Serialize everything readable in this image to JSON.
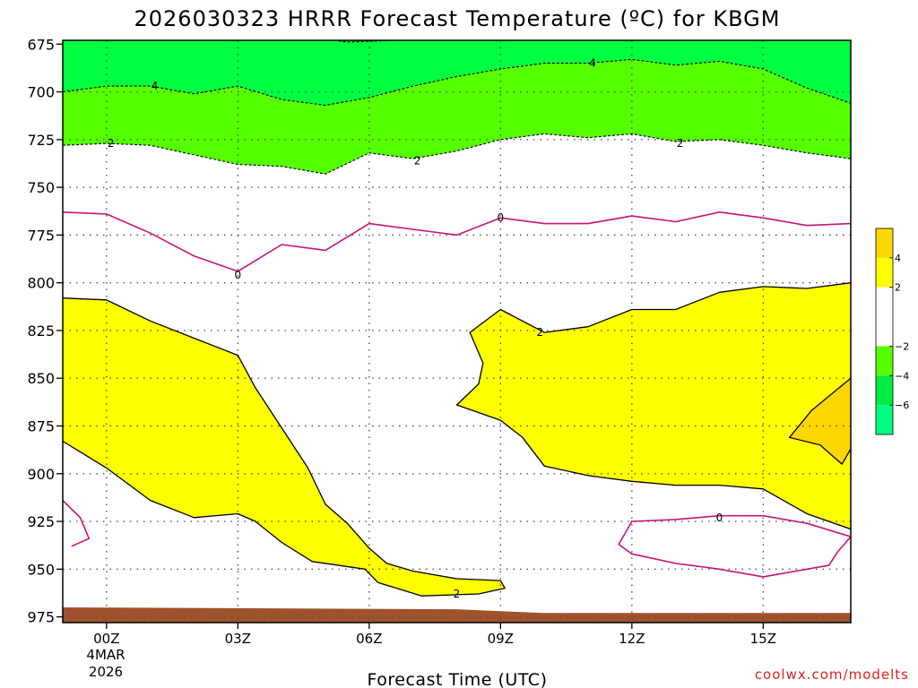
{
  "chart_data": {
    "type": "heatmap",
    "title": "2026030323 HRRR Forecast Temperature (ºC) for KBGM",
    "xlabel": "Forecast Time (UTC)",
    "ylabel": "",
    "credit": "coolwx.com/modelts",
    "x_ticks": [
      {
        "hour": 0,
        "label": "00Z"
      },
      {
        "hour": 3,
        "label": "03Z"
      },
      {
        "hour": 6,
        "label": "06Z"
      },
      {
        "hour": 9,
        "label": "09Z"
      },
      {
        "hour": 12,
        "label": "12Z"
      },
      {
        "hour": 15,
        "label": "15Z"
      }
    ],
    "x_date_lines": [
      "4MAR",
      "2026"
    ],
    "xlim": [
      -1,
      17
    ],
    "y_ticks": [
      675,
      700,
      725,
      750,
      775,
      800,
      825,
      850,
      875,
      900,
      925,
      950,
      975
    ],
    "ylim": [
      673,
      978
    ],
    "y_inverted": true,
    "grid": true,
    "legend": {
      "placement": "right",
      "bands": [
        {
          "from": 4,
          "to": 6,
          "color": "#ffd700"
        },
        {
          "from": 2,
          "to": 4,
          "color": "#ffff00"
        },
        {
          "from": -2,
          "to": 2,
          "color": "#ffffff"
        },
        {
          "from": -4,
          "to": -2,
          "color": "#55ff00"
        },
        {
          "from": -6,
          "to": -4,
          "color": "#00ee44"
        },
        {
          "from": -8,
          "to": -6,
          "color": "#00ff80"
        }
      ],
      "labels": [
        {
          "value": 4,
          "text": "4"
        },
        {
          "value": 2,
          "text": "2"
        },
        {
          "value": -2,
          "text": "−2"
        },
        {
          "value": -4,
          "text": "−4"
        },
        {
          "value": -6,
          "text": "−6"
        }
      ]
    },
    "ground": {
      "color": "#a0522d",
      "top": [
        [
          -1,
          970
        ],
        [
          8,
          971
        ],
        [
          9,
          972
        ],
        [
          10,
          973
        ],
        [
          17,
          973
        ]
      ]
    },
    "fills": [
      {
        "name": "below -4",
        "color": "#00ff40",
        "polygon": [
          [
            -1,
            673
          ],
          [
            17,
            673
          ],
          [
            17,
            706
          ],
          [
            16,
            698
          ],
          [
            15,
            688
          ],
          [
            14,
            684
          ],
          [
            13,
            686
          ],
          [
            12,
            683
          ],
          [
            11,
            685
          ],
          [
            10,
            685
          ],
          [
            9,
            688
          ],
          [
            8,
            692
          ],
          [
            7,
            697
          ],
          [
            6,
            703
          ],
          [
            5,
            707
          ],
          [
            4,
            704
          ],
          [
            3,
            697
          ],
          [
            2,
            701
          ],
          [
            1,
            697
          ],
          [
            0,
            697
          ],
          [
            -1,
            700
          ]
        ]
      },
      {
        "name": "-4 to -2",
        "color": "#55ff00",
        "polygon": [
          [
            -1,
            700
          ],
          [
            0,
            697
          ],
          [
            1,
            697
          ],
          [
            2,
            701
          ],
          [
            3,
            697
          ],
          [
            4,
            704
          ],
          [
            5,
            707
          ],
          [
            6,
            703
          ],
          [
            7,
            697
          ],
          [
            8,
            692
          ],
          [
            9,
            688
          ],
          [
            10,
            685
          ],
          [
            11,
            685
          ],
          [
            12,
            683
          ],
          [
            13,
            686
          ],
          [
            14,
            684
          ],
          [
            15,
            688
          ],
          [
            16,
            698
          ],
          [
            17,
            706
          ],
          [
            17,
            735
          ],
          [
            16,
            732
          ],
          [
            15,
            728
          ],
          [
            14,
            725
          ],
          [
            13,
            726
          ],
          [
            12,
            722
          ],
          [
            11,
            724
          ],
          [
            10,
            722
          ],
          [
            9,
            725
          ],
          [
            8,
            731
          ],
          [
            7,
            735
          ],
          [
            6,
            732
          ],
          [
            5,
            743
          ],
          [
            4,
            739
          ],
          [
            3,
            738
          ],
          [
            2,
            733
          ],
          [
            1,
            728
          ],
          [
            0,
            727
          ],
          [
            -1,
            728
          ]
        ]
      },
      {
        "name": "2 to 4 (lower left)",
        "color": "#ffff00",
        "polygon": [
          [
            -1,
            808
          ],
          [
            0,
            809
          ],
          [
            1,
            820
          ],
          [
            2,
            829
          ],
          [
            3,
            838
          ],
          [
            3.4,
            855
          ],
          [
            4,
            876
          ],
          [
            4.6,
            897
          ],
          [
            5,
            916
          ],
          [
            5.5,
            926
          ],
          [
            6,
            939
          ],
          [
            6.4,
            947
          ],
          [
            7,
            951
          ],
          [
            8,
            955
          ],
          [
            9,
            956
          ],
          [
            9.1,
            960
          ],
          [
            8.5,
            963
          ],
          [
            7.2,
            964
          ],
          [
            6.2,
            957
          ],
          [
            5.9,
            950
          ],
          [
            4.7,
            946
          ],
          [
            4,
            936
          ],
          [
            3.4,
            925
          ],
          [
            3,
            921
          ],
          [
            2,
            923
          ],
          [
            1,
            914
          ],
          [
            0,
            897
          ],
          [
            -1,
            883
          ]
        ]
      },
      {
        "name": "2 to 4 (right)",
        "color": "#ffff00",
        "polygon": [
          [
            8.3,
            826
          ],
          [
            9,
            814
          ],
          [
            10,
            826
          ],
          [
            11,
            823
          ],
          [
            12,
            814
          ],
          [
            13,
            814
          ],
          [
            14,
            805
          ],
          [
            15,
            802
          ],
          [
            16,
            803
          ],
          [
            17,
            800
          ],
          [
            17,
            929
          ],
          [
            16,
            921
          ],
          [
            15,
            908
          ],
          [
            14,
            906
          ],
          [
            13,
            906
          ],
          [
            12,
            904
          ],
          [
            11,
            901
          ],
          [
            10,
            896
          ],
          [
            9.5,
            881
          ],
          [
            9,
            872
          ],
          [
            8,
            864
          ],
          [
            8.5,
            853
          ],
          [
            8.6,
            842
          ]
        ]
      },
      {
        "name": "4 to 6",
        "color": "#ffd700",
        "polygon": [
          [
            16.1,
            867
          ],
          [
            17,
            850
          ],
          [
            17,
            887
          ],
          [
            16.8,
            895
          ],
          [
            16.3,
            885
          ],
          [
            15.6,
            881
          ]
        ]
      }
    ],
    "contours": [
      {
        "value": -4,
        "style": "dashed",
        "points": [
          [
            -1,
            700
          ],
          [
            0,
            697
          ],
          [
            1,
            697
          ],
          [
            2,
            701
          ],
          [
            3,
            697
          ],
          [
            4,
            704
          ],
          [
            5,
            707
          ],
          [
            6,
            703
          ],
          [
            7,
            697
          ],
          [
            8,
            692
          ],
          [
            9,
            688
          ],
          [
            10,
            685
          ],
          [
            11,
            685
          ],
          [
            12,
            683
          ],
          [
            13,
            686
          ],
          [
            14,
            684
          ],
          [
            15,
            688
          ],
          [
            16,
            698
          ],
          [
            17,
            706
          ]
        ],
        "labels": [
          {
            "x": 1.1,
            "y": 697,
            "text": "4"
          },
          {
            "x": 11.1,
            "y": 685,
            "text": "4"
          }
        ]
      },
      {
        "value": -6,
        "style": "dashed",
        "points": [
          [
            5,
            672
          ],
          [
            5.5,
            674
          ],
          [
            6.5,
            673
          ],
          [
            8,
            672
          ]
        ],
        "labels": []
      },
      {
        "value": -2,
        "style": "dashed",
        "points": [
          [
            -1,
            728
          ],
          [
            0,
            727
          ],
          [
            1,
            728
          ],
          [
            2,
            733
          ],
          [
            3,
            738
          ],
          [
            4,
            739
          ],
          [
            5,
            743
          ],
          [
            6,
            732
          ],
          [
            7,
            735
          ],
          [
            8,
            731
          ],
          [
            9,
            725
          ],
          [
            10,
            722
          ],
          [
            11,
            724
          ],
          [
            12,
            722
          ],
          [
            13,
            726
          ],
          [
            14,
            725
          ],
          [
            15,
            728
          ],
          [
            16,
            732
          ],
          [
            17,
            735
          ]
        ],
        "labels": [
          {
            "x": 0.1,
            "y": 727,
            "text": "2"
          },
          {
            "x": 7.1,
            "y": 736,
            "text": "2"
          },
          {
            "x": 13.1,
            "y": 727,
            "text": "2"
          }
        ]
      },
      {
        "value": 0,
        "style": "magenta",
        "points": [
          [
            -1,
            763
          ],
          [
            0,
            764
          ],
          [
            1,
            774
          ],
          [
            2,
            786
          ],
          [
            3,
            794
          ],
          [
            4,
            780
          ],
          [
            5,
            783
          ],
          [
            6,
            769
          ],
          [
            7,
            772
          ],
          [
            8,
            775
          ],
          [
            9,
            766
          ],
          [
            10,
            769
          ],
          [
            11,
            769
          ],
          [
            12,
            765
          ],
          [
            13,
            768
          ],
          [
            14,
            763
          ],
          [
            15,
            766
          ],
          [
            16,
            770
          ],
          [
            17,
            769
          ]
        ],
        "labels": [
          {
            "x": 3.0,
            "y": 796,
            "text": "0"
          },
          {
            "x": 9.0,
            "y": 766,
            "text": "0"
          }
        ]
      },
      {
        "value": 0,
        "style": "magenta",
        "points": [
          [
            -1,
            914
          ],
          [
            -0.6,
            923
          ],
          [
            -0.4,
            934
          ],
          [
            -0.8,
            938
          ]
        ],
        "labels": []
      },
      {
        "value": 0,
        "style": "magenta",
        "closed": true,
        "points": [
          [
            12,
            925
          ],
          [
            13,
            924
          ],
          [
            14,
            922
          ],
          [
            15,
            922
          ],
          [
            16,
            926
          ],
          [
            17,
            933
          ],
          [
            16.7,
            941
          ],
          [
            16.5,
            948
          ],
          [
            16,
            950
          ],
          [
            15,
            954
          ],
          [
            14,
            950
          ],
          [
            13,
            947
          ],
          [
            12,
            942
          ],
          [
            11.7,
            937
          ]
        ],
        "labels": [
          {
            "x": 14.0,
            "y": 923,
            "text": "0"
          }
        ]
      },
      {
        "value": 2,
        "style": "solid",
        "points": [
          [
            -1,
            808
          ],
          [
            0,
            809
          ],
          [
            1,
            820
          ],
          [
            2,
            829
          ],
          [
            3,
            838
          ],
          [
            3.4,
            855
          ],
          [
            4,
            876
          ],
          [
            4.6,
            897
          ],
          [
            5,
            916
          ],
          [
            5.5,
            926
          ],
          [
            6,
            939
          ],
          [
            6.4,
            947
          ],
          [
            7,
            951
          ],
          [
            8,
            955
          ],
          [
            9,
            956
          ],
          [
            9.1,
            960
          ],
          [
            8.5,
            963
          ],
          [
            7.2,
            964
          ],
          [
            6.2,
            957
          ],
          [
            5.9,
            950
          ],
          [
            4.7,
            946
          ],
          [
            4,
            936
          ],
          [
            3.4,
            925
          ],
          [
            3,
            921
          ],
          [
            2,
            923
          ],
          [
            1,
            914
          ],
          [
            0,
            897
          ],
          [
            -1,
            883
          ]
        ],
        "labels": [
          {
            "x": 8.0,
            "y": 963,
            "text": "2"
          }
        ]
      },
      {
        "value": 2,
        "style": "solid",
        "points": [
          [
            17,
            800
          ],
          [
            16,
            803
          ],
          [
            15,
            802
          ],
          [
            14,
            805
          ],
          [
            13,
            814
          ],
          [
            12,
            814
          ],
          [
            11,
            823
          ],
          [
            10,
            826
          ],
          [
            9,
            814
          ],
          [
            8.3,
            826
          ],
          [
            8.6,
            842
          ],
          [
            8.5,
            853
          ],
          [
            8,
            864
          ],
          [
            9,
            872
          ],
          [
            9.5,
            881
          ],
          [
            10,
            896
          ],
          [
            11,
            901
          ],
          [
            12,
            904
          ],
          [
            13,
            906
          ],
          [
            14,
            906
          ],
          [
            15,
            908
          ],
          [
            16,
            921
          ],
          [
            17,
            929
          ]
        ],
        "labels": [
          {
            "x": 9.9,
            "y": 826,
            "text": "2"
          }
        ]
      },
      {
        "value": 4,
        "style": "solid",
        "points": [
          [
            17,
            850
          ],
          [
            16.1,
            867
          ],
          [
            15.6,
            881
          ],
          [
            16.3,
            885
          ],
          [
            16.8,
            895
          ],
          [
            17,
            887
          ]
        ],
        "labels": []
      }
    ]
  }
}
